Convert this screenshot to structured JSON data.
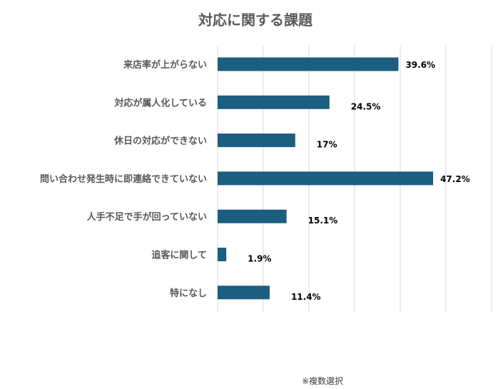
{
  "chart_data": {
    "type": "bar",
    "orientation": "horizontal",
    "title": "対応に関する課題",
    "categories": [
      "来店率が上がらない",
      "対応が属人化している",
      "休日の対応ができない",
      "問い合わせ発生時に即連絡できていない",
      "人手不足で手が回っていない",
      "追客に関して",
      "特になし"
    ],
    "values": [
      39.6,
      24.5,
      17,
      47.2,
      15.1,
      1.9,
      11.4
    ],
    "data_labels": [
      "39.6%",
      "24.5%",
      "17%",
      "47.2%",
      "15.1%",
      "1.9%",
      "11.4%"
    ],
    "xlim": [
      0,
      60
    ],
    "grid": true,
    "bar_color": "#1b5e80",
    "note": "※複数選択"
  }
}
